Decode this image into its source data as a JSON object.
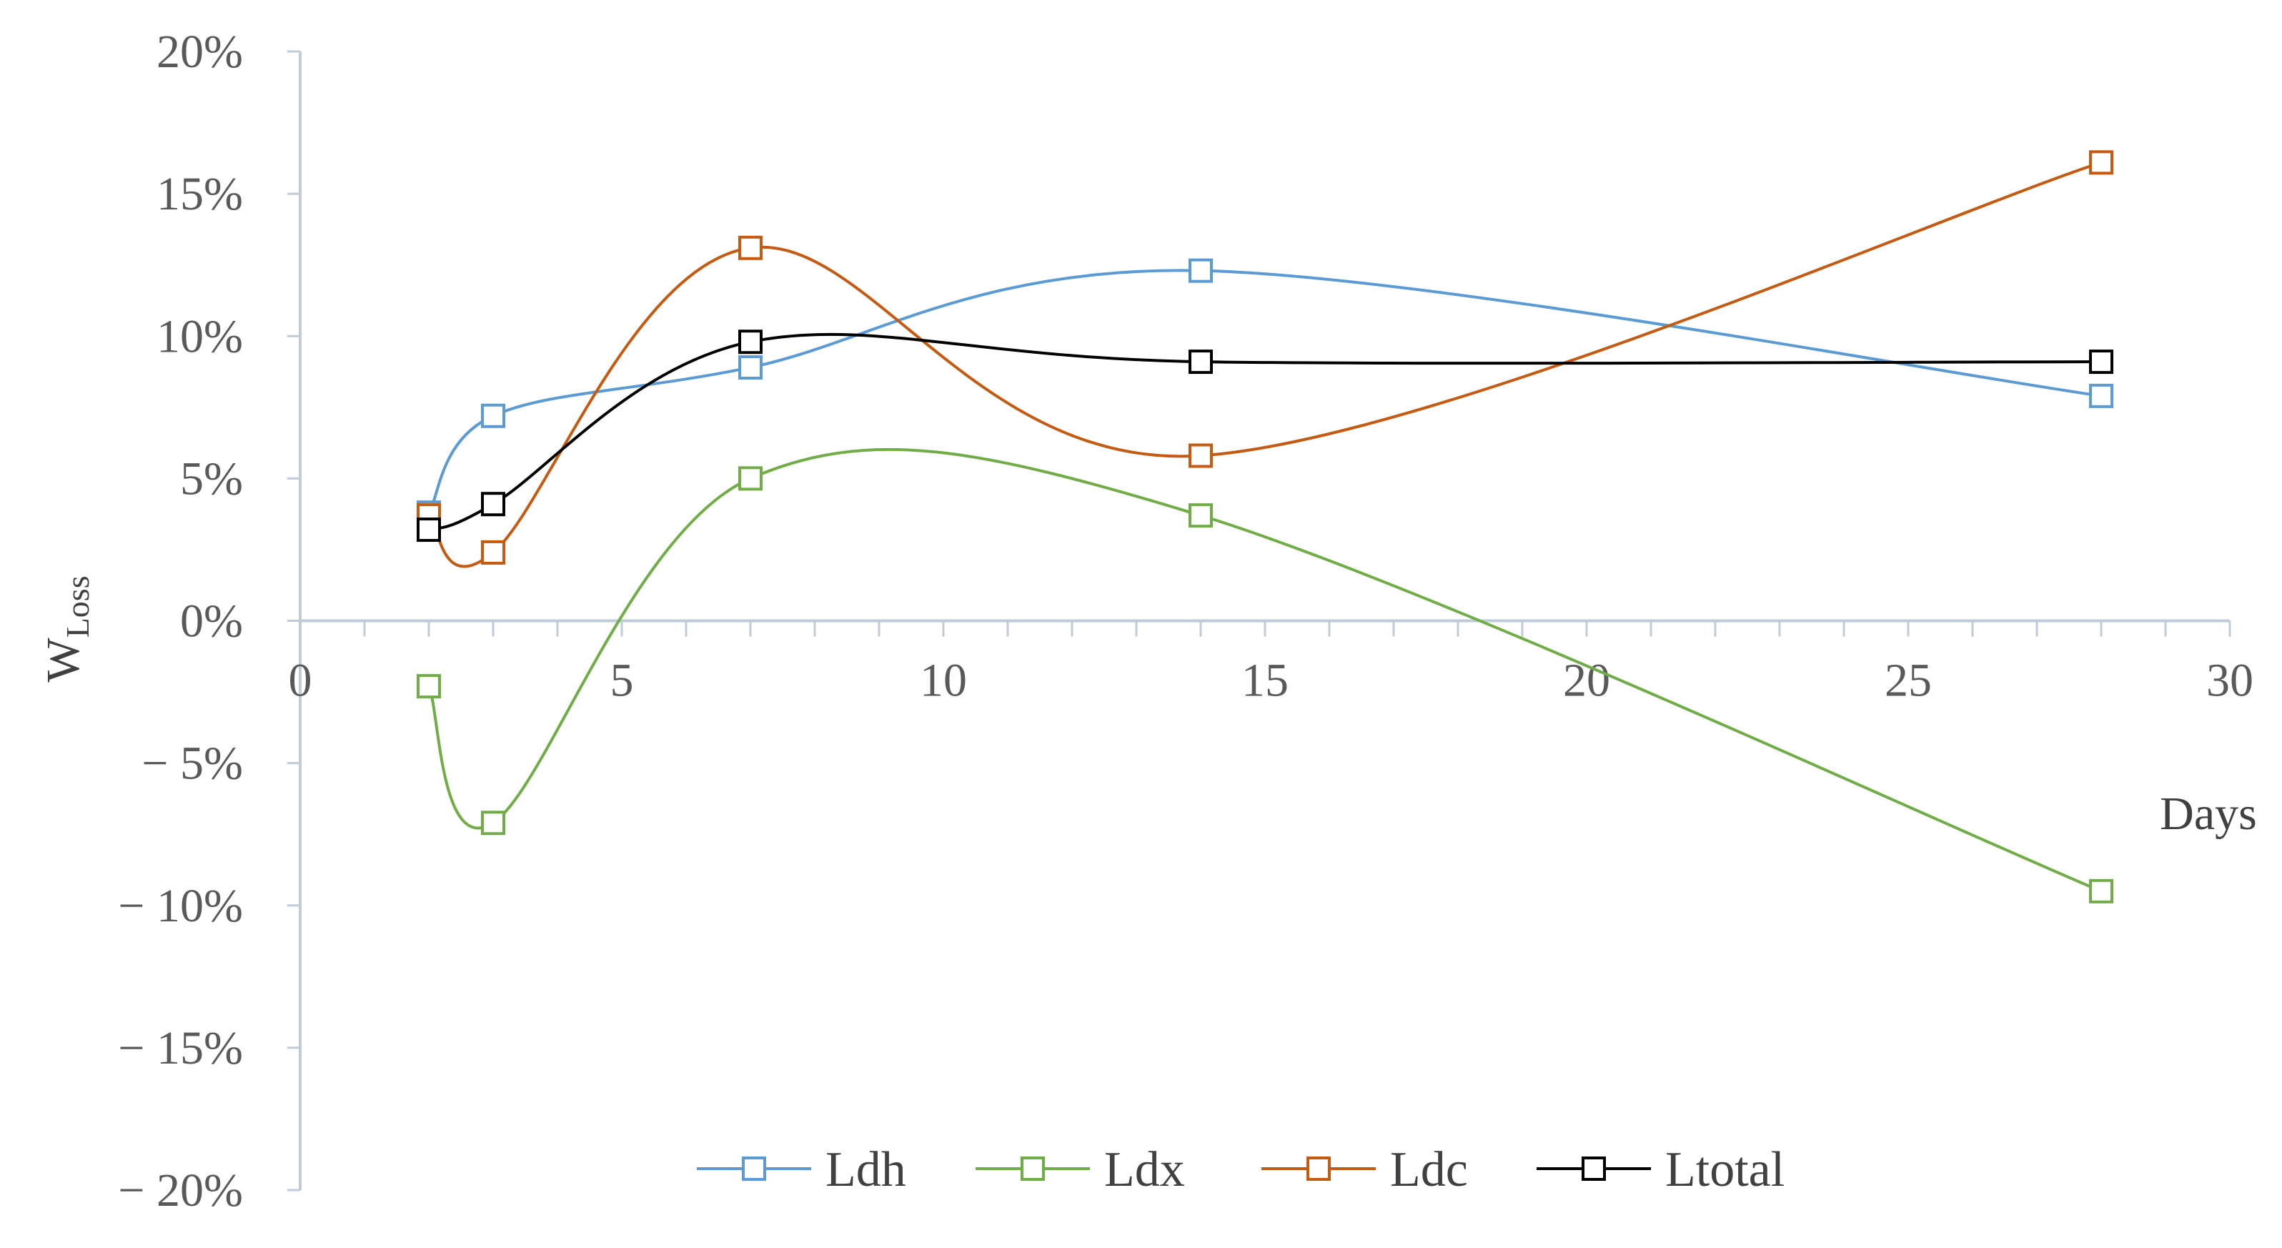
{
  "chart_data": {
    "type": "line",
    "title": "",
    "xlabel": "Days",
    "ylabel": "W",
    "ylabel_sub": "Loss",
    "xlim": [
      0,
      30
    ],
    "ylim": [
      -0.2,
      0.2
    ],
    "x_ticks": [
      "0",
      "5",
      "10",
      "15",
      "20",
      "25",
      "30"
    ],
    "y_ticks": [
      "20%",
      "15%",
      "10%",
      "5%",
      "0%",
      "− 5%",
      "− 10%",
      "− 15%",
      "− 20%"
    ],
    "grid": false,
    "smoothed": true,
    "legend_position": "bottom",
    "x": [
      2,
      3,
      7,
      14,
      28
    ],
    "series": [
      {
        "name": "Ldh",
        "color": "#5b9bd5",
        "marker": "hollow-square",
        "values": [
          0.038,
          0.072,
          0.089,
          0.123,
          0.079
        ]
      },
      {
        "name": "Ldx",
        "color": "#70ad47",
        "marker": "hollow-square",
        "values": [
          -0.023,
          -0.071,
          0.05,
          0.037,
          -0.095
        ]
      },
      {
        "name": "Ldc",
        "color": "#c55a11",
        "marker": "hollow-square",
        "values": [
          0.037,
          0.024,
          0.131,
          0.058,
          0.161
        ]
      },
      {
        "name": "Ltotal",
        "color": "#000000",
        "marker": "hollow-square",
        "values": [
          0.032,
          0.041,
          0.098,
          0.091,
          0.091
        ]
      }
    ]
  }
}
